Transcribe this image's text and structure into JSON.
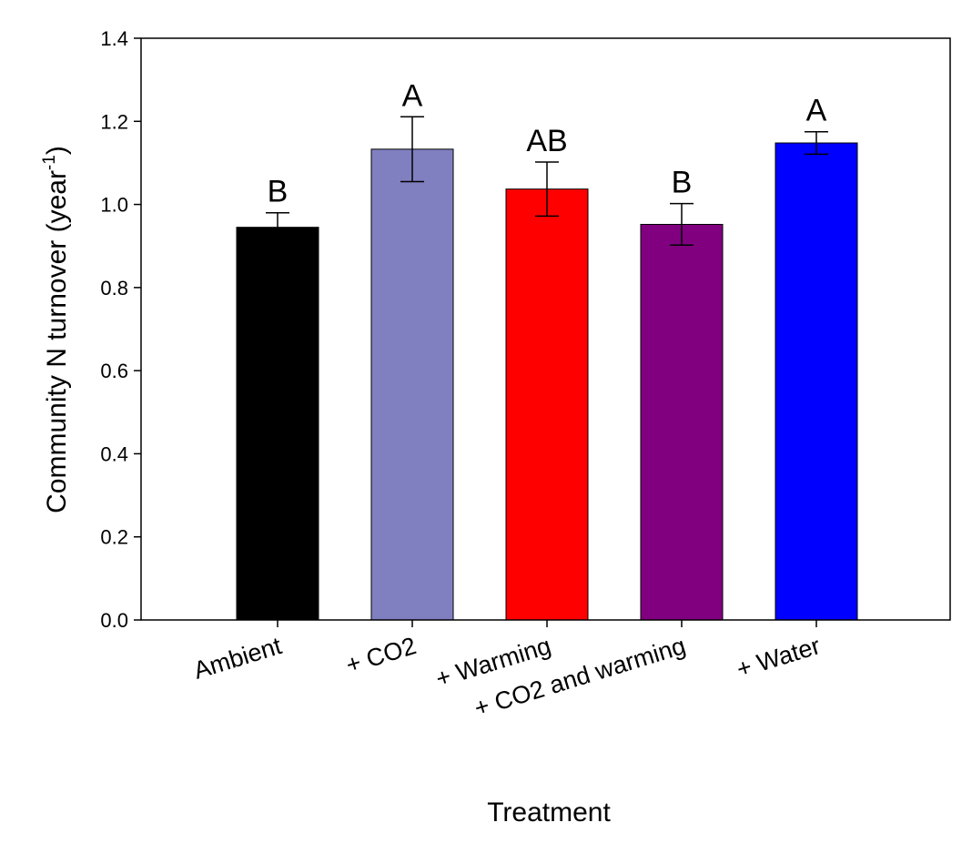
{
  "chart_data": {
    "type": "bar",
    "title": "",
    "xlabel": "Treatment",
    "ylabel_main": "Community N turnover (year",
    "ylabel_sup": "-1",
    "ylabel_close": ")",
    "ylim": [
      0.0,
      1.4
    ],
    "yticks": [
      "0.0",
      "0.2",
      "0.4",
      "0.6",
      "0.8",
      "1.0",
      "1.2",
      "1.4"
    ],
    "grid": false,
    "legend": "none",
    "categories": [
      "Ambient",
      "+ CO2",
      "+ Warming",
      "+ CO2 and warming",
      "+ Water"
    ],
    "values": [
      0.945,
      1.133,
      1.037,
      0.952,
      1.148
    ],
    "error": [
      0.035,
      0.078,
      0.065,
      0.05,
      0.027
    ],
    "significance": [
      "B",
      "A",
      "AB",
      "B",
      "A"
    ],
    "colors": [
      "#000000",
      "#8080C0",
      "#FF0000",
      "#800080",
      "#0000FF"
    ]
  }
}
